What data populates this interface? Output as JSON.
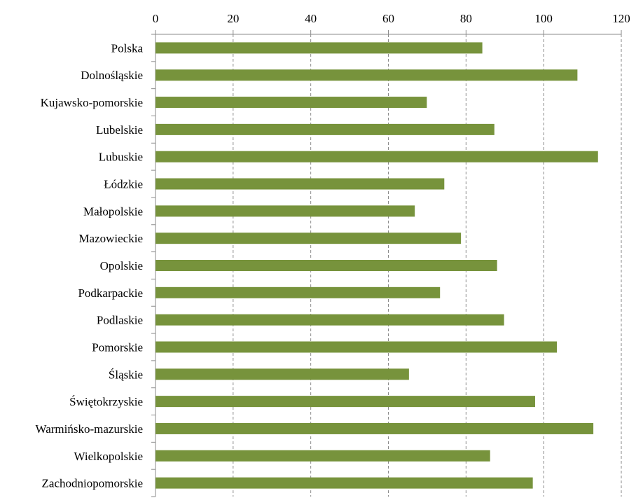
{
  "chart_data": {
    "type": "bar",
    "orientation": "horizontal",
    "title": "",
    "xlabel": "",
    "ylabel": "",
    "x_axis_position": "top",
    "xlim": [
      0,
      120
    ],
    "x_ticks": [
      0,
      20,
      40,
      60,
      80,
      100,
      120
    ],
    "grid": "vertical dashed",
    "bar_color": "#77933C",
    "categories": [
      "Polska",
      "Dolnośląskie",
      "Kujawsko-pomorskie",
      "Lubelskie",
      "Lubuskie",
      "Łódzkie",
      "Małopolskie",
      "Mazowieckie",
      "Opolskie",
      "Podkarpackie",
      "Podlaskie",
      "Pomorskie",
      "Śląskie",
      "Świętokrzyskie",
      "Warmińsko-mazurskie",
      "Wielkopolskie",
      "Zachodniopomorskie"
    ],
    "values": [
      84.2,
      108.7,
      69.9,
      87.3,
      114.0,
      74.4,
      66.8,
      78.7,
      88.0,
      73.3,
      89.8,
      103.4,
      65.3,
      97.8,
      112.8,
      86.2,
      97.2
    ]
  }
}
